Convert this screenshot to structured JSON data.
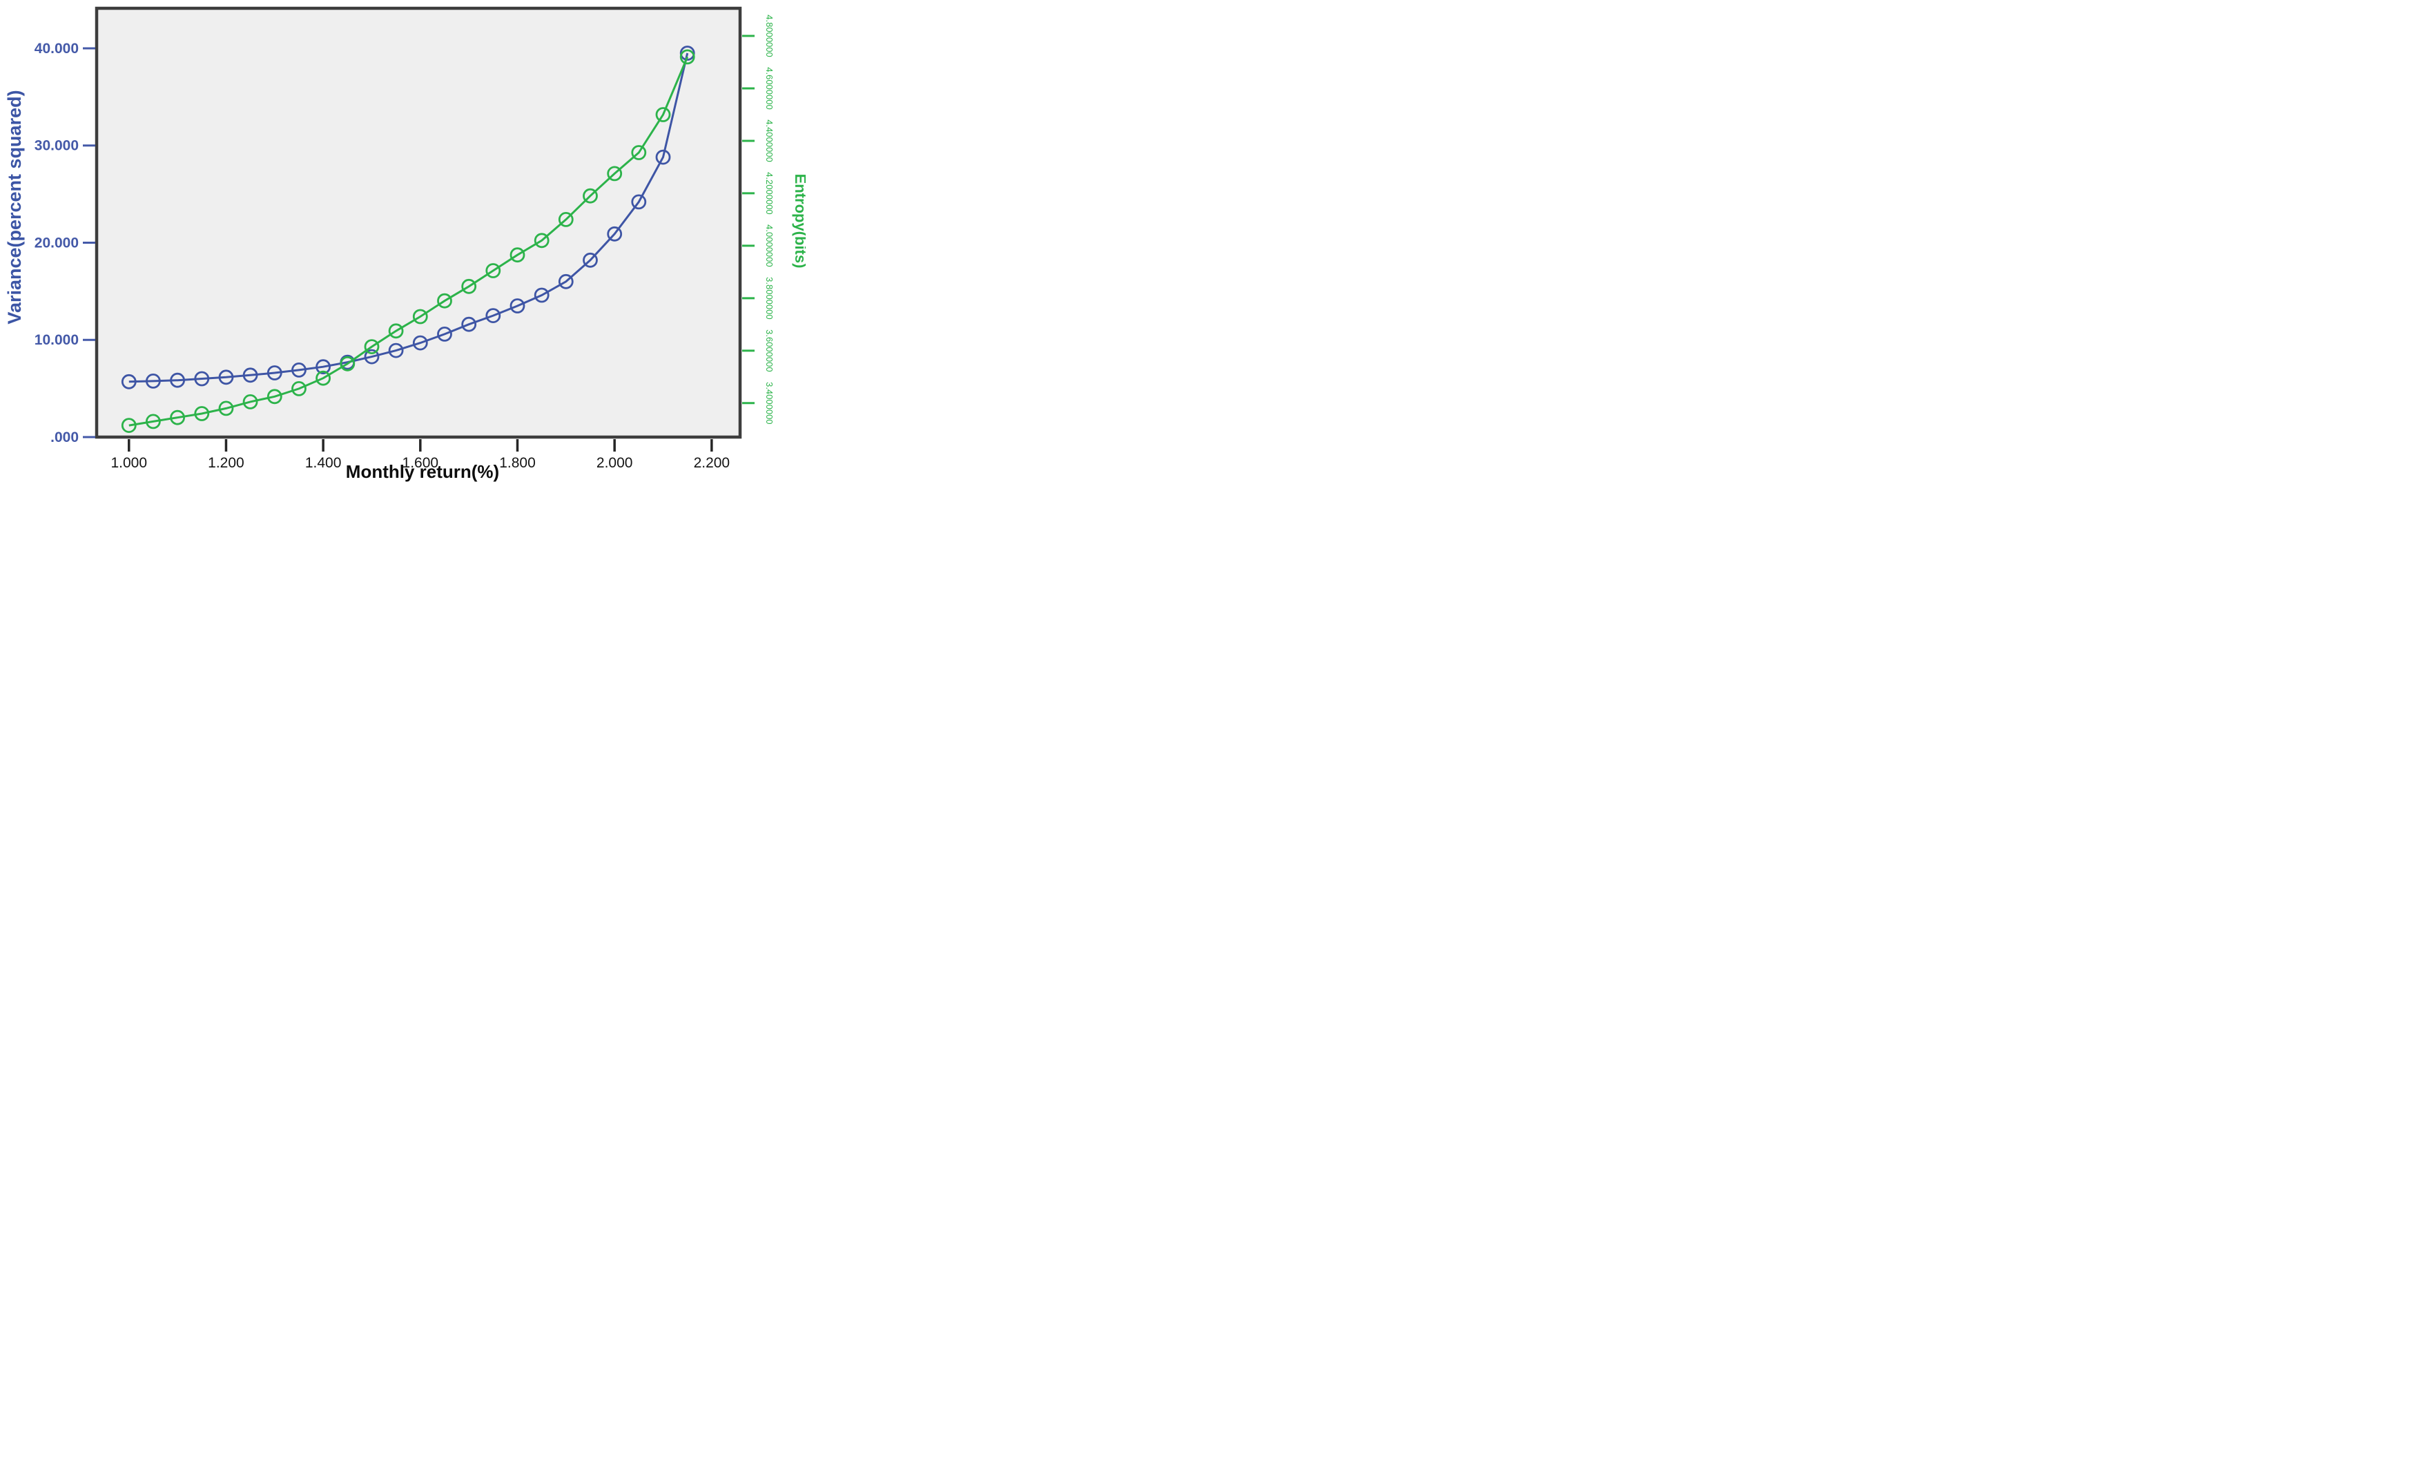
{
  "chart_data": {
    "type": "line",
    "title": "",
    "xlabel": "Monthly return(%)",
    "ylabel_left": "Variance(percent squared)",
    "ylabel_right": "Entropy(bits)",
    "legend_position": "none",
    "grid": false,
    "plot_background": "#EFEFEF",
    "frame_color": "#3D3D3D",
    "x_axis": {
      "range": [
        0.9335,
        2.2585
      ],
      "tick_color": "#262626",
      "ticks": [
        {
          "label": "1.000",
          "value": 1.0
        },
        {
          "label": "1.200",
          "value": 1.2
        },
        {
          "label": "1.400",
          "value": 1.4
        },
        {
          "label": "1.600",
          "value": 1.6
        },
        {
          "label": "1.800",
          "value": 1.8
        },
        {
          "label": "2.000",
          "value": 2.0
        },
        {
          "label": "2.200",
          "value": 2.2
        }
      ]
    },
    "y_left": {
      "range": [
        0,
        44.12
      ],
      "tick_color": "#4459A8",
      "ticks": [
        {
          "label": "40.000",
          "value": 40
        },
        {
          "label": "30.000",
          "value": 30
        },
        {
          "label": "20.000",
          "value": 20
        },
        {
          "label": "10.000",
          "value": 10
        },
        {
          "label": ".000",
          "value": 0
        }
      ]
    },
    "y_right": {
      "range": [
        3.2705,
        4.9053
      ],
      "tick_color": "#2CB34A",
      "ticks": [
        {
          "label": "4.8000000",
          "value": 4.8
        },
        {
          "label": "4.6000000",
          "value": 4.6
        },
        {
          "label": "4.4000000",
          "value": 4.4
        },
        {
          "label": "4.2000000",
          "value": 4.2
        },
        {
          "label": "4.0000000",
          "value": 4.0
        },
        {
          "label": "3.8000000",
          "value": 3.8
        },
        {
          "label": "3.6000000",
          "value": 3.6
        },
        {
          "label": "3.4000000",
          "value": 3.4
        }
      ]
    },
    "x": [
      1.0,
      1.05,
      1.1,
      1.15,
      1.2,
      1.25,
      1.3,
      1.35,
      1.4,
      1.45,
      1.5,
      1.55,
      1.6,
      1.65,
      1.7,
      1.75,
      1.8,
      1.85,
      1.9,
      1.95,
      2.0,
      2.05,
      2.1,
      2.15
    ],
    "series": [
      {
        "name": "Variance(percent squared)",
        "axis": "left",
        "color": "#3E55A5",
        "marker": "open-circle",
        "values": [
          5.7,
          5.76,
          5.85,
          6.0,
          6.16,
          6.37,
          6.61,
          6.9,
          7.23,
          7.7,
          8.27,
          8.91,
          9.69,
          10.59,
          11.6,
          12.5,
          13.5,
          14.6,
          16.0,
          18.2,
          20.9,
          24.2,
          28.8,
          39.5
        ]
      },
      {
        "name": "Entropy(bits)",
        "axis": "right",
        "color": "#2CB34A",
        "marker": "open-circle",
        "values": [
          3.315,
          3.33,
          3.345,
          3.36,
          3.38,
          3.405,
          3.425,
          3.455,
          3.495,
          3.55,
          3.615,
          3.675,
          3.73,
          3.79,
          3.845,
          3.905,
          3.965,
          4.02,
          4.1,
          4.19,
          4.275,
          4.355,
          4.5,
          4.72
        ]
      }
    ]
  }
}
